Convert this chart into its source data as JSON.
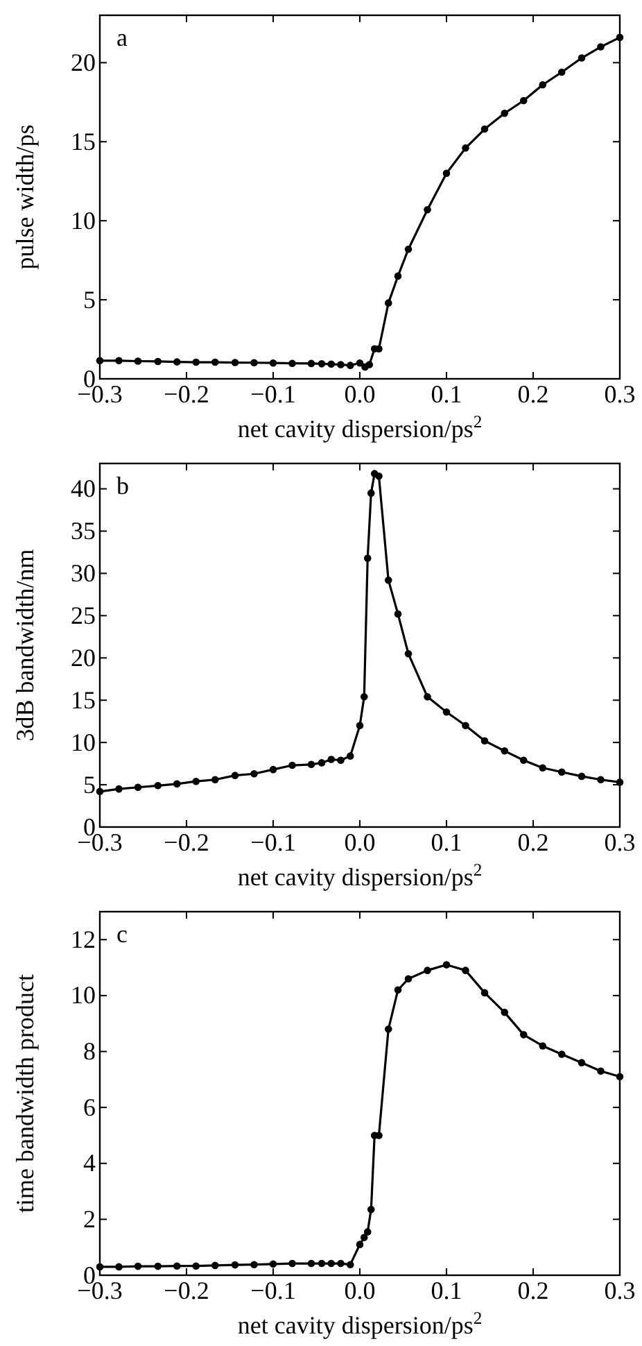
{
  "chart_data": [
    {
      "type": "line",
      "xlabel": "net cavity dispersion/ps$^{2}$",
      "ylabel": "pulse width/ps",
      "annotations": [
        "a"
      ],
      "marker": "circle",
      "line_style": "solid",
      "grid": false,
      "x": [
        -0.3,
        -0.278,
        -0.256,
        -0.233,
        -0.211,
        -0.189,
        -0.167,
        -0.144,
        -0.122,
        -0.1,
        -0.078,
        -0.056,
        -0.044,
        -0.033,
        -0.022,
        -0.011,
        0,
        0.006,
        0.011,
        0.017,
        0.022,
        0.033,
        0.044,
        0.056,
        0.078,
        0.1,
        0.122,
        0.144,
        0.167,
        0.189,
        0.211,
        0.233,
        0.256,
        0.278,
        0.3
      ],
      "series": [
        {
          "color": "#000000",
          "values": [
            1.15,
            1.15,
            1.12,
            1.1,
            1.07,
            1.05,
            1.05,
            1.03,
            1.02,
            1.0,
            0.98,
            0.97,
            0.95,
            0.93,
            0.9,
            0.85,
            1.0,
            0.75,
            0.9,
            1.9,
            1.9,
            4.8,
            6.5,
            8.2,
            10.7,
            13.0,
            14.6,
            15.8,
            16.8,
            17.6,
            18.6,
            19.4,
            20.3,
            21.0,
            21.6
          ]
        }
      ],
      "xlim": [
        -0.3,
        0.3
      ],
      "xticks": [
        {
          "value": -0.3,
          "label": "−0.3"
        },
        {
          "value": -0.2,
          "label": "−0.2"
        },
        {
          "value": -0.1,
          "label": "−0.1"
        },
        {
          "value": 0,
          "label": "0.0"
        },
        {
          "value": 0.1,
          "label": "0.1"
        },
        {
          "value": 0.2,
          "label": "0.2"
        },
        {
          "value": 0.3,
          "label": "0.3"
        }
      ],
      "ylim": [
        0,
        23
      ],
      "yticks": [
        0,
        5,
        10,
        15,
        20
      ]
    },
    {
      "type": "line",
      "xlabel": "net cavity dispersion/ps$^{2}$",
      "ylabel": "3dB bandwidth/nm",
      "annotations": [
        "b"
      ],
      "marker": "circle",
      "line_style": "solid",
      "grid": false,
      "x": [
        -0.3,
        -0.278,
        -0.256,
        -0.233,
        -0.211,
        -0.189,
        -0.167,
        -0.144,
        -0.122,
        -0.1,
        -0.078,
        -0.056,
        -0.044,
        -0.033,
        -0.022,
        -0.011,
        0,
        0.005,
        0.009,
        0.013,
        0.017,
        0.022,
        0.033,
        0.044,
        0.056,
        0.078,
        0.1,
        0.122,
        0.144,
        0.167,
        0.189,
        0.211,
        0.233,
        0.256,
        0.278,
        0.3
      ],
      "series": [
        {
          "color": "#000000",
          "values": [
            4.2,
            4.5,
            4.7,
            4.9,
            5.1,
            5.4,
            5.6,
            6.1,
            6.3,
            6.8,
            7.3,
            7.4,
            7.6,
            8.0,
            7.9,
            8.4,
            12.0,
            15.4,
            31.8,
            39.5,
            41.8,
            41.5,
            29.2,
            25.2,
            20.5,
            15.4,
            13.6,
            12.0,
            10.2,
            9.0,
            7.9,
            7.0,
            6.5,
            6.0,
            5.6,
            5.3
          ]
        }
      ],
      "xlim": [
        -0.3,
        0.3
      ],
      "xticks": [
        {
          "value": -0.3,
          "label": "−0.3"
        },
        {
          "value": -0.2,
          "label": "−0.2"
        },
        {
          "value": -0.1,
          "label": "−0.1"
        },
        {
          "value": 0,
          "label": "0.0"
        },
        {
          "value": 0.1,
          "label": "0.1"
        },
        {
          "value": 0.2,
          "label": "0.2"
        },
        {
          "value": 0.3,
          "label": "0.3"
        }
      ],
      "ylim": [
        0,
        43
      ],
      "yticks": [
        0,
        5,
        10,
        15,
        20,
        25,
        30,
        35,
        40
      ]
    },
    {
      "type": "line",
      "xlabel": "net cavity dispersion/ps$^{2}$",
      "ylabel": "time bandwidth product",
      "annotations": [
        "c"
      ],
      "marker": "circle",
      "line_style": "solid",
      "grid": false,
      "x": [
        -0.3,
        -0.278,
        -0.256,
        -0.233,
        -0.211,
        -0.189,
        -0.167,
        -0.144,
        -0.122,
        -0.1,
        -0.078,
        -0.056,
        -0.044,
        -0.033,
        -0.022,
        -0.011,
        0,
        0.005,
        0.009,
        0.013,
        0.017,
        0.022,
        0.033,
        0.044,
        0.056,
        0.078,
        0.1,
        0.122,
        0.144,
        0.167,
        0.189,
        0.211,
        0.233,
        0.256,
        0.278,
        0.3
      ],
      "series": [
        {
          "color": "#000000",
          "values": [
            0.3,
            0.3,
            0.32,
            0.32,
            0.33,
            0.33,
            0.35,
            0.37,
            0.38,
            0.4,
            0.42,
            0.42,
            0.42,
            0.42,
            0.42,
            0.38,
            1.1,
            1.35,
            1.55,
            2.35,
            5.0,
            5.0,
            8.8,
            10.2,
            10.6,
            10.9,
            11.1,
            10.9,
            10.1,
            9.4,
            8.6,
            8.2,
            7.9,
            7.6,
            7.3,
            7.1
          ]
        }
      ],
      "xlim": [
        -0.3,
        0.3
      ],
      "xticks": [
        {
          "value": -0.3,
          "label": "−0.3"
        },
        {
          "value": -0.2,
          "label": "−0.2"
        },
        {
          "value": -0.1,
          "label": "−0.1"
        },
        {
          "value": 0,
          "label": "0.0"
        },
        {
          "value": 0.1,
          "label": "0.1"
        },
        {
          "value": 0.2,
          "label": "0.2"
        },
        {
          "value": 0.3,
          "label": "0.3"
        }
      ],
      "ylim": [
        0,
        13
      ],
      "yticks": [
        0,
        2,
        4,
        6,
        8,
        10,
        12
      ]
    }
  ]
}
